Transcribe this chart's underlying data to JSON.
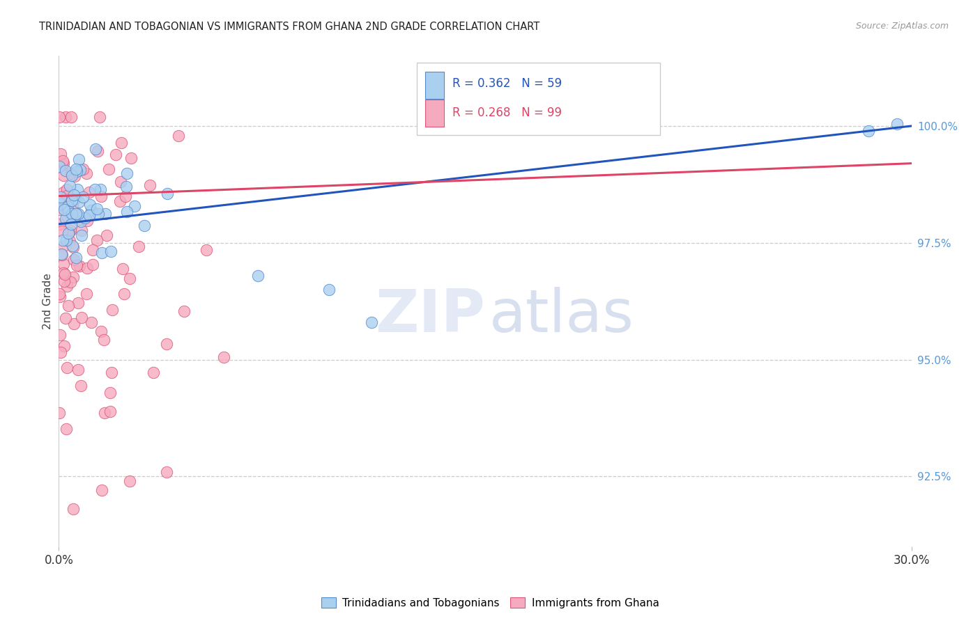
{
  "title": "TRINIDADIAN AND TOBAGONIAN VS IMMIGRANTS FROM GHANA 2ND GRADE CORRELATION CHART",
  "source": "Source: ZipAtlas.com",
  "ylabel": "2nd Grade",
  "right_yticks": [
    92.5,
    95.0,
    97.5,
    100.0
  ],
  "blue_R": 0.362,
  "blue_N": 59,
  "pink_R": 0.268,
  "pink_N": 99,
  "blue_color": "#AAD0F0",
  "pink_color": "#F5AAC0",
  "blue_edge_color": "#5588CC",
  "pink_edge_color": "#DD5577",
  "blue_line_color": "#2255BB",
  "pink_line_color": "#DD4466",
  "legend_label_blue": "Trinidadians and Tobagonians",
  "legend_label_pink": "Immigrants from Ghana",
  "watermark_zip": "ZIP",
  "watermark_atlas": "atlas",
  "xlim_min": 0,
  "xlim_max": 30,
  "ylim_min": 91.0,
  "ylim_max": 101.5,
  "xaxis_left": "0.0%",
  "xaxis_right": "30.0%"
}
